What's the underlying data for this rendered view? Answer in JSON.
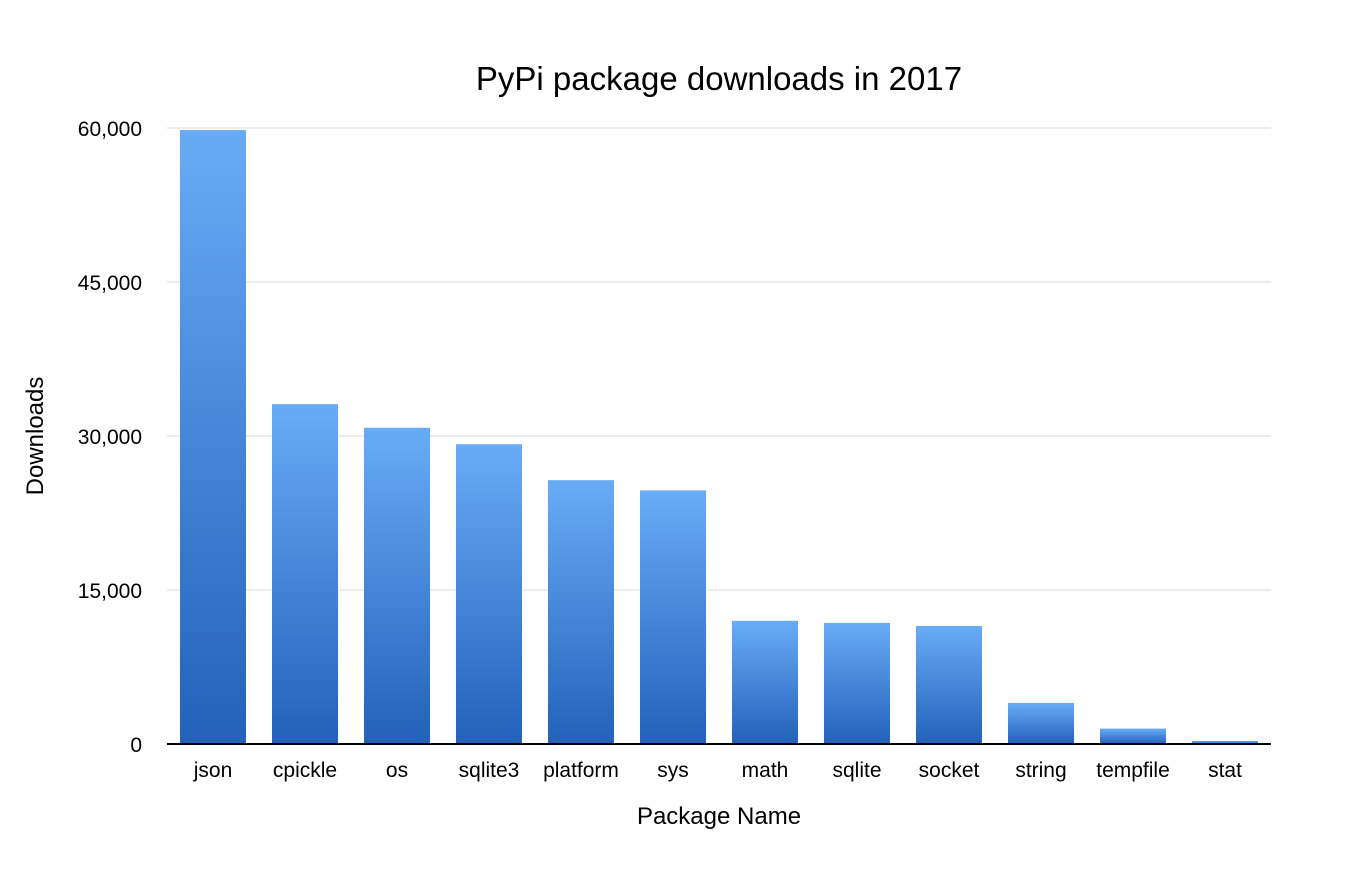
{
  "chart_data": {
    "type": "bar",
    "title": "PyPi package downloads in 2017",
    "xlabel": "Package Name",
    "ylabel": "Downloads",
    "ylim": [
      0,
      60000
    ],
    "yticks": [
      0,
      15000,
      30000,
      45000,
      60000
    ],
    "ytick_labels": [
      "0",
      "15,000",
      "30,000",
      "45,000",
      "60,000"
    ],
    "grid": true,
    "categories": [
      "json",
      "cpickle",
      "os",
      "sqlite3",
      "platform",
      "sys",
      "math",
      "sqlite",
      "socket",
      "string",
      "tempfile",
      "stat"
    ],
    "values": [
      59800,
      33100,
      30800,
      29200,
      25700,
      24700,
      12000,
      11800,
      11500,
      4000,
      1500,
      300
    ],
    "colors": {
      "bar_top": "#68acf6",
      "bar_bottom": "#2361ba",
      "grid": "#d9d9d9",
      "axis": "#000000"
    }
  }
}
